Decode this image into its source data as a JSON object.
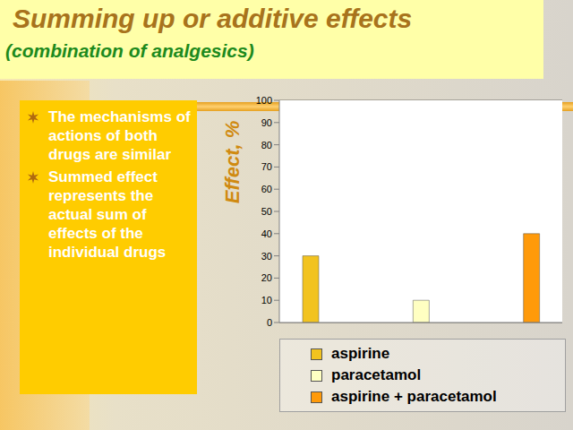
{
  "title": "Summing up or additive effects",
  "subtitle": "(combination of analgesics)",
  "bullets": [
    "The mechanisms of actions of both drugs are similar",
    "Summed effect represents the actual sum of effects of the individual drugs"
  ],
  "chart_data": {
    "type": "bar",
    "categories": [
      null,
      null,
      null
    ],
    "y_label": "Effect, %",
    "ylim": [
      0,
      100
    ],
    "yticks": [
      0,
      10,
      20,
      30,
      40,
      50,
      60,
      70,
      80,
      90,
      100
    ],
    "grid": true,
    "legend": "bottom",
    "series": [
      {
        "name": "aspirine",
        "color": "#f2c31f",
        "values": [
          30,
          null,
          null
        ]
      },
      {
        "name": "paracetamol",
        "color": "#ffffc2",
        "values": [
          null,
          10,
          null
        ]
      },
      {
        "name": "aspirine + paracetamol",
        "color": "#ff9a0a",
        "values": [
          null,
          null,
          40
        ]
      }
    ]
  }
}
